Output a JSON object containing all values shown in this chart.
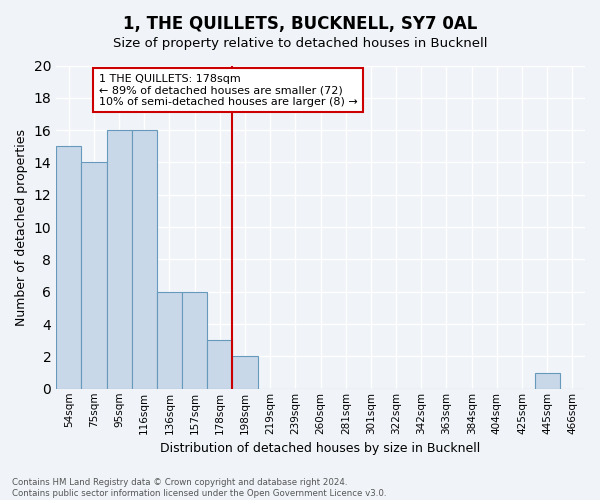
{
  "title": "1, THE QUILLETS, BUCKNELL, SY7 0AL",
  "subtitle": "Size of property relative to detached houses in Bucknell",
  "xlabel": "Distribution of detached houses by size in Bucknell",
  "ylabel": "Number of detached properties",
  "bins": [
    "54sqm",
    "75sqm",
    "95sqm",
    "116sqm",
    "136sqm",
    "157sqm",
    "178sqm",
    "198sqm",
    "219sqm",
    "239sqm",
    "260sqm",
    "281sqm",
    "301sqm",
    "322sqm",
    "342sqm",
    "363sqm",
    "384sqm",
    "404sqm",
    "425sqm",
    "445sqm",
    "466sqm"
  ],
  "values": [
    15,
    14,
    16,
    16,
    6,
    6,
    3,
    2,
    0,
    0,
    0,
    0,
    0,
    0,
    0,
    0,
    0,
    0,
    0,
    1,
    0
  ],
  "bar_color": "#c8d8e8",
  "bar_edge_color": "#6699bb",
  "vline_x_index": 6,
  "vline_color": "#cc0000",
  "annotation_text": "1 THE QUILLETS: 178sqm\n← 89% of detached houses are smaller (72)\n10% of semi-detached houses are larger (8) →",
  "annotation_box_color": "#ffffff",
  "annotation_box_edge_color": "#cc0000",
  "ylim": [
    0,
    20
  ],
  "yticks": [
    0,
    2,
    4,
    6,
    8,
    10,
    12,
    14,
    16,
    18,
    20
  ],
  "footer_text": "Contains HM Land Registry data © Crown copyright and database right 2024.\nContains public sector information licensed under the Open Government Licence v3.0.",
  "background_color": "#f0f4f8",
  "grid_color": "#ffffff"
}
